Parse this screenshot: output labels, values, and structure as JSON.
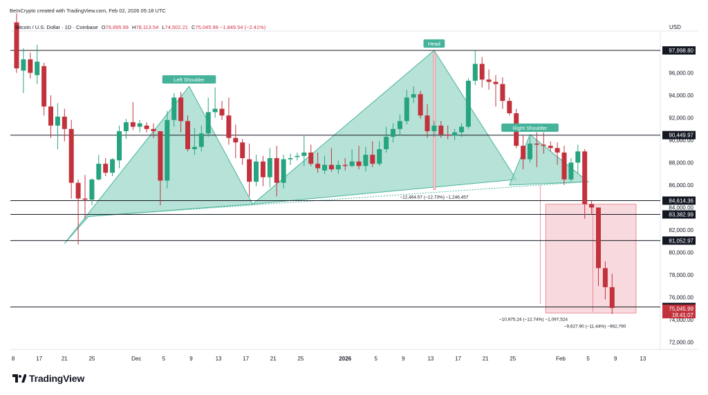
{
  "credit": "BeInCrypto created with TradingView.com, Feb 02, 2026 05:18 UTC",
  "legend": {
    "symbol": "Bitcoin / U.S. Dollar · 1D · Coinbase",
    "o_label": "O",
    "o_value": "76,895.99",
    "h_label": "H",
    "h_value": "78,113.54",
    "l_label": "L",
    "l_value": "74,502.21",
    "c_label": "C",
    "c_value": "75,045.99",
    "change": "−1,849.54 (−2.41%)"
  },
  "currency": "USD",
  "brand": "TradingView",
  "colors": {
    "up": "#26a37f",
    "down": "#c2323c",
    "pattern_fill": "#9fd8c9",
    "pattern_line": "#45b39a",
    "target_fill": "#f6cfd4",
    "target_line": "#e57a86"
  },
  "chart_data": {
    "type": "candlestick",
    "title": "",
    "xlabel": "",
    "ylabel": "",
    "ylim": [
      70700,
      102000
    ],
    "x_ticks": [
      "8",
      "17",
      "21",
      "25",
      "Dec",
      "5",
      "9",
      "13",
      "17",
      "21",
      "25",
      "2026",
      "5",
      "9",
      "13",
      "17",
      "21",
      "25",
      "Feb",
      "5",
      "9",
      "13"
    ],
    "y_ticks": [
      "72,000.00",
      "74,000.00",
      "76,000.00",
      "78,000.00",
      "80,000.00",
      "82,000.00",
      "84,000.00",
      "86,000.00",
      "88,000.00",
      "90,000.00",
      "92,000.00",
      "94,000.00",
      "96,000.00"
    ],
    "levels": [
      {
        "value": 97998.8,
        "label": "97,998.80"
      },
      {
        "value": 90449.97,
        "label": "90,449.97"
      },
      {
        "value": 84614.36,
        "label": "84,614.36"
      },
      {
        "value": 83382.99,
        "label": "83,382.99"
      },
      {
        "value": 81052.97,
        "label": "81,052.97"
      },
      {
        "value": 75138.17,
        "label": "75,138.17"
      }
    ],
    "last_price": {
      "value": 75045.99,
      "label": "75,045.99",
      "countdown": "18:41:07"
    },
    "pattern_labels": [
      {
        "text": "Left Shoulder",
        "at_price": 94800
      },
      {
        "text": "Head",
        "at_price": 97998
      },
      {
        "text": "Right Shoulder",
        "at_price": 90500
      }
    ],
    "measurements": [
      {
        "text": "−12,464.57 (−12.73%) −1,246,457"
      },
      {
        "text": "−10,975.24 (−12.74%) −1,097,524"
      },
      {
        "text": "−9,627.90 (−11.44%) −962,790"
      }
    ],
    "candles": [
      {
        "o": 100500,
        "h": 101300,
        "l": 96000,
        "c": 96400
      },
      {
        "o": 96200,
        "h": 98200,
        "l": 94200,
        "c": 97200
      },
      {
        "o": 97200,
        "h": 97800,
        "l": 95500,
        "c": 96000
      },
      {
        "o": 95800,
        "h": 98500,
        "l": 95000,
        "c": 97000
      },
      {
        "o": 96600,
        "h": 96900,
        "l": 92200,
        "c": 93000
      },
      {
        "o": 93000,
        "h": 94000,
        "l": 90200,
        "c": 91300
      },
      {
        "o": 91300,
        "h": 93300,
        "l": 89200,
        "c": 92100
      },
      {
        "o": 92100,
        "h": 92800,
        "l": 89900,
        "c": 91000
      },
      {
        "o": 91000,
        "h": 91800,
        "l": 84800,
        "c": 86200
      },
      {
        "o": 86200,
        "h": 86500,
        "l": 80700,
        "c": 84800
      },
      {
        "o": 84800,
        "h": 86900,
        "l": 83000,
        "c": 84700
      },
      {
        "o": 84700,
        "h": 86600,
        "l": 84200,
        "c": 86500
      },
      {
        "o": 86500,
        "h": 88700,
        "l": 86400,
        "c": 87900
      },
      {
        "o": 87900,
        "h": 88400,
        "l": 86800,
        "c": 87100
      },
      {
        "o": 87100,
        "h": 88400,
        "l": 86800,
        "c": 88300
      },
      {
        "o": 88200,
        "h": 91300,
        "l": 87500,
        "c": 90800
      },
      {
        "o": 90800,
        "h": 91900,
        "l": 90100,
        "c": 91600
      },
      {
        "o": 91600,
        "h": 93400,
        "l": 90900,
        "c": 91200
      },
      {
        "o": 91200,
        "h": 91800,
        "l": 90700,
        "c": 91500
      },
      {
        "o": 91300,
        "h": 91600,
        "l": 90700,
        "c": 91000
      },
      {
        "o": 91000,
        "h": 91500,
        "l": 90200,
        "c": 90800
      },
      {
        "o": 90800,
        "h": 90800,
        "l": 84200,
        "c": 86400
      },
      {
        "o": 86400,
        "h": 92600,
        "l": 85700,
        "c": 91800
      },
      {
        "o": 91800,
        "h": 94200,
        "l": 91200,
        "c": 93800
      },
      {
        "o": 93800,
        "h": 94300,
        "l": 90700,
        "c": 91700
      },
      {
        "o": 91700,
        "h": 92200,
        "l": 89000,
        "c": 89200
      },
      {
        "o": 89200,
        "h": 91100,
        "l": 88700,
        "c": 89400
      },
      {
        "o": 89400,
        "h": 91300,
        "l": 89000,
        "c": 90600
      },
      {
        "o": 90600,
        "h": 93800,
        "l": 90300,
        "c": 92500
      },
      {
        "o": 92500,
        "h": 94700,
        "l": 92000,
        "c": 92800
      },
      {
        "o": 92800,
        "h": 93500,
        "l": 91800,
        "c": 92200
      },
      {
        "o": 92200,
        "h": 93800,
        "l": 89600,
        "c": 90200
      },
      {
        "o": 90200,
        "h": 91400,
        "l": 88400,
        "c": 89800
      },
      {
        "o": 89800,
        "h": 90100,
        "l": 87800,
        "c": 88400
      },
      {
        "o": 88300,
        "h": 89700,
        "l": 85000,
        "c": 86300
      },
      {
        "o": 86300,
        "h": 88700,
        "l": 85900,
        "c": 88100
      },
      {
        "o": 88100,
        "h": 88600,
        "l": 85900,
        "c": 86700
      },
      {
        "o": 86700,
        "h": 89300,
        "l": 85800,
        "c": 88400
      },
      {
        "o": 88400,
        "h": 89500,
        "l": 85000,
        "c": 86200
      },
      {
        "o": 86200,
        "h": 88700,
        "l": 85700,
        "c": 88300
      },
      {
        "o": 88300,
        "h": 88800,
        "l": 87800,
        "c": 88400
      },
      {
        "o": 88500,
        "h": 88900,
        "l": 88200,
        "c": 88600
      },
      {
        "o": 88600,
        "h": 90500,
        "l": 87700,
        "c": 88900
      },
      {
        "o": 88900,
        "h": 89600,
        "l": 87700,
        "c": 87900
      },
      {
        "o": 87900,
        "h": 88900,
        "l": 87100,
        "c": 87500
      },
      {
        "o": 87300,
        "h": 88600,
        "l": 87000,
        "c": 87800
      },
      {
        "o": 87800,
        "h": 89300,
        "l": 87200,
        "c": 87400
      },
      {
        "o": 87400,
        "h": 88200,
        "l": 87000,
        "c": 87800
      },
      {
        "o": 87800,
        "h": 88400,
        "l": 87300,
        "c": 87700
      },
      {
        "o": 87700,
        "h": 89200,
        "l": 87600,
        "c": 88100
      },
      {
        "o": 88100,
        "h": 89500,
        "l": 87400,
        "c": 87700
      },
      {
        "o": 87700,
        "h": 89400,
        "l": 87200,
        "c": 88700
      },
      {
        "o": 88700,
        "h": 89900,
        "l": 87600,
        "c": 87900
      },
      {
        "o": 87900,
        "h": 89900,
        "l": 87700,
        "c": 89200
      },
      {
        "o": 89200,
        "h": 91200,
        "l": 88900,
        "c": 90300
      },
      {
        "o": 90300,
        "h": 91500,
        "l": 89800,
        "c": 91000
      },
      {
        "o": 91000,
        "h": 92300,
        "l": 90400,
        "c": 91700
      },
      {
        "o": 91700,
        "h": 94500,
        "l": 91400,
        "c": 93800
      },
      {
        "o": 93800,
        "h": 94800,
        "l": 93300,
        "c": 94100
      },
      {
        "o": 94100,
        "h": 94400,
        "l": 91900,
        "c": 92200
      },
      {
        "o": 92200,
        "h": 93200,
        "l": 90200,
        "c": 90800
      },
      {
        "o": 90800,
        "h": 91700,
        "l": 90300,
        "c": 91300
      },
      {
        "o": 91300,
        "h": 91700,
        "l": 90200,
        "c": 90500
      },
      {
        "o": 90500,
        "h": 91300,
        "l": 90100,
        "c": 90400
      },
      {
        "o": 90400,
        "h": 91000,
        "l": 90000,
        "c": 90700
      },
      {
        "o": 90700,
        "h": 91500,
        "l": 90300,
        "c": 91200
      },
      {
        "o": 91200,
        "h": 95500,
        "l": 91000,
        "c": 95300
      },
      {
        "o": 95300,
        "h": 98000,
        "l": 94900,
        "c": 96800
      },
      {
        "o": 96800,
        "h": 97400,
        "l": 94700,
        "c": 95400
      },
      {
        "o": 95400,
        "h": 96300,
        "l": 94500,
        "c": 95200
      },
      {
        "o": 95200,
        "h": 95800,
        "l": 93000,
        "c": 95000
      },
      {
        "o": 95000,
        "h": 95600,
        "l": 92800,
        "c": 93500
      },
      {
        "o": 93500,
        "h": 93800,
        "l": 92200,
        "c": 92400
      },
      {
        "o": 92400,
        "h": 92800,
        "l": 89300,
        "c": 89500
      },
      {
        "o": 89500,
        "h": 90400,
        "l": 87400,
        "c": 88300
      },
      {
        "o": 88300,
        "h": 90300,
        "l": 88000,
        "c": 89700
      },
      {
        "o": 89700,
        "h": 90700,
        "l": 87600,
        "c": 89600
      },
      {
        "o": 89600,
        "h": 90700,
        "l": 88800,
        "c": 89500
      },
      {
        "o": 89500,
        "h": 89900,
        "l": 89000,
        "c": 89300
      },
      {
        "o": 89300,
        "h": 89800,
        "l": 87800,
        "c": 88900
      },
      {
        "o": 88900,
        "h": 89500,
        "l": 86000,
        "c": 86500
      },
      {
        "o": 86500,
        "h": 88400,
        "l": 86300,
        "c": 88000
      },
      {
        "o": 88000,
        "h": 89600,
        "l": 87000,
        "c": 89000
      },
      {
        "o": 89000,
        "h": 89200,
        "l": 83000,
        "c": 84300
      },
      {
        "o": 84300,
        "h": 84600,
        "l": 83400,
        "c": 84000
      },
      {
        "o": 84000,
        "h": 84000,
        "l": 77000,
        "c": 78600
      },
      {
        "o": 78600,
        "h": 79200,
        "l": 75800,
        "c": 76900
      },
      {
        "o": 76900,
        "h": 78100,
        "l": 74500,
        "c": 75046
      }
    ]
  }
}
